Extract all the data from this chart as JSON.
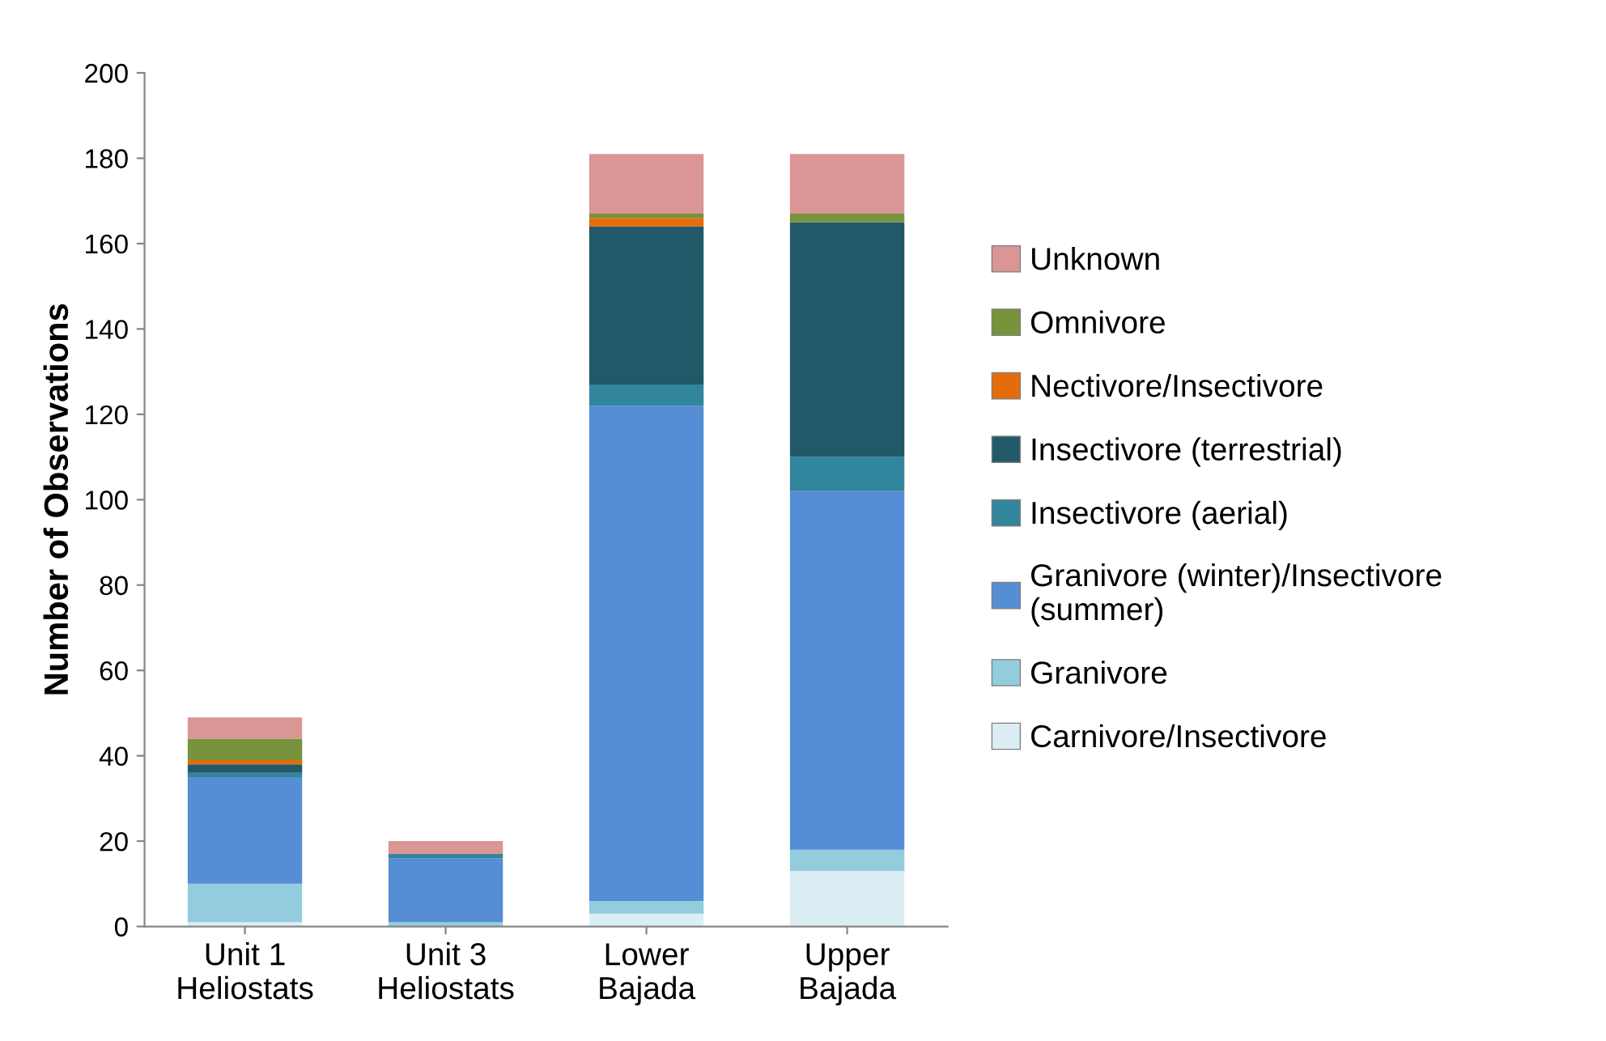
{
  "chart_data": {
    "type": "bar",
    "stacked": true,
    "ylabel": "Number of Observations",
    "categories": [
      "Unit 1\nHeliostats",
      "Unit 3\nHeliostats",
      "Lower\nBajada",
      "Upper\nBajada"
    ],
    "series": [
      {
        "name": "Carnivore/Insectivore",
        "color": "#dbeef4",
        "values": [
          1,
          0,
          3,
          13
        ]
      },
      {
        "name": "Granivore",
        "color": "#93cddd",
        "values": [
          9,
          1,
          3,
          5
        ]
      },
      {
        "name": "Granivore (winter)/Insectivore\n(summer)",
        "color": "#558ed5",
        "values": [
          25,
          15,
          116,
          84
        ]
      },
      {
        "name": "Insectivore (aerial)",
        "color": "#31859c",
        "values": [
          1,
          1,
          5,
          8
        ]
      },
      {
        "name": "Insectivore (terrestrial)",
        "color": "#215968",
        "values": [
          2,
          0,
          37,
          55
        ]
      },
      {
        "name": "Nectivore/Insectivore",
        "color": "#e46c0a",
        "values": [
          1,
          0,
          2,
          0
        ]
      },
      {
        "name": "Omnivore",
        "color": "#77933c",
        "values": [
          5,
          0,
          1,
          2
        ]
      },
      {
        "name": "Unknown",
        "color": "#d99694",
        "values": [
          5,
          3,
          14,
          14
        ]
      }
    ],
    "ylim": [
      0,
      200
    ],
    "yticks": [
      0,
      20,
      40,
      60,
      80,
      100,
      120,
      140,
      160,
      180,
      200
    ],
    "grid": false,
    "legend": "right"
  }
}
